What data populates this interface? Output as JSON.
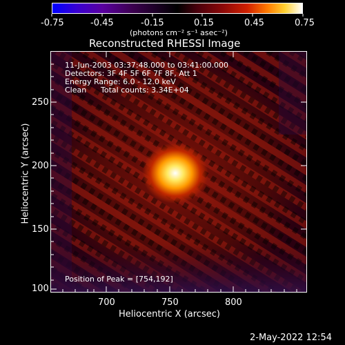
{
  "colorbar": {
    "ticks": [
      "-0.75",
      "-0.45",
      "-0.15",
      "0.15",
      "0.45",
      "0.75"
    ],
    "units": "(photons cm⁻² s⁻¹ asec⁻²)",
    "range": [
      -0.75,
      0.75
    ],
    "colormap": [
      "#0000ff",
      "#4b00c8",
      "#6a0078",
      "#400030",
      "#000000",
      "#5a0010",
      "#a01010",
      "#e04000",
      "#ff9900",
      "#ffe040",
      "#ffffd0"
    ]
  },
  "title": "Reconstructed RHESSI Image",
  "info": {
    "time": "11-Jun-2003 03:37:48.000 to 03:41:00.000",
    "detectors": "Detectors: 3F 4F 5F 6F 7F 8F, Att 1",
    "energy": "Energy Range: 6.0 - 12.0 keV",
    "method": "Clean",
    "counts": "Total counts: 3.34E+04",
    "peak": "Position of Peak = [754,192]"
  },
  "xaxis": {
    "label": "Heliocentric X (arcsec)",
    "ticks": [
      "700",
      "750",
      "800"
    ],
    "range": [
      660,
      845
    ]
  },
  "yaxis": {
    "label": "Heliocentric Y (arcsec)",
    "ticks": [
      "100",
      "150",
      "200",
      "250"
    ],
    "range": [
      98,
      283
    ]
  },
  "peak": {
    "x": 754,
    "y": 192
  },
  "footer": "2-May-2022 12:54"
}
